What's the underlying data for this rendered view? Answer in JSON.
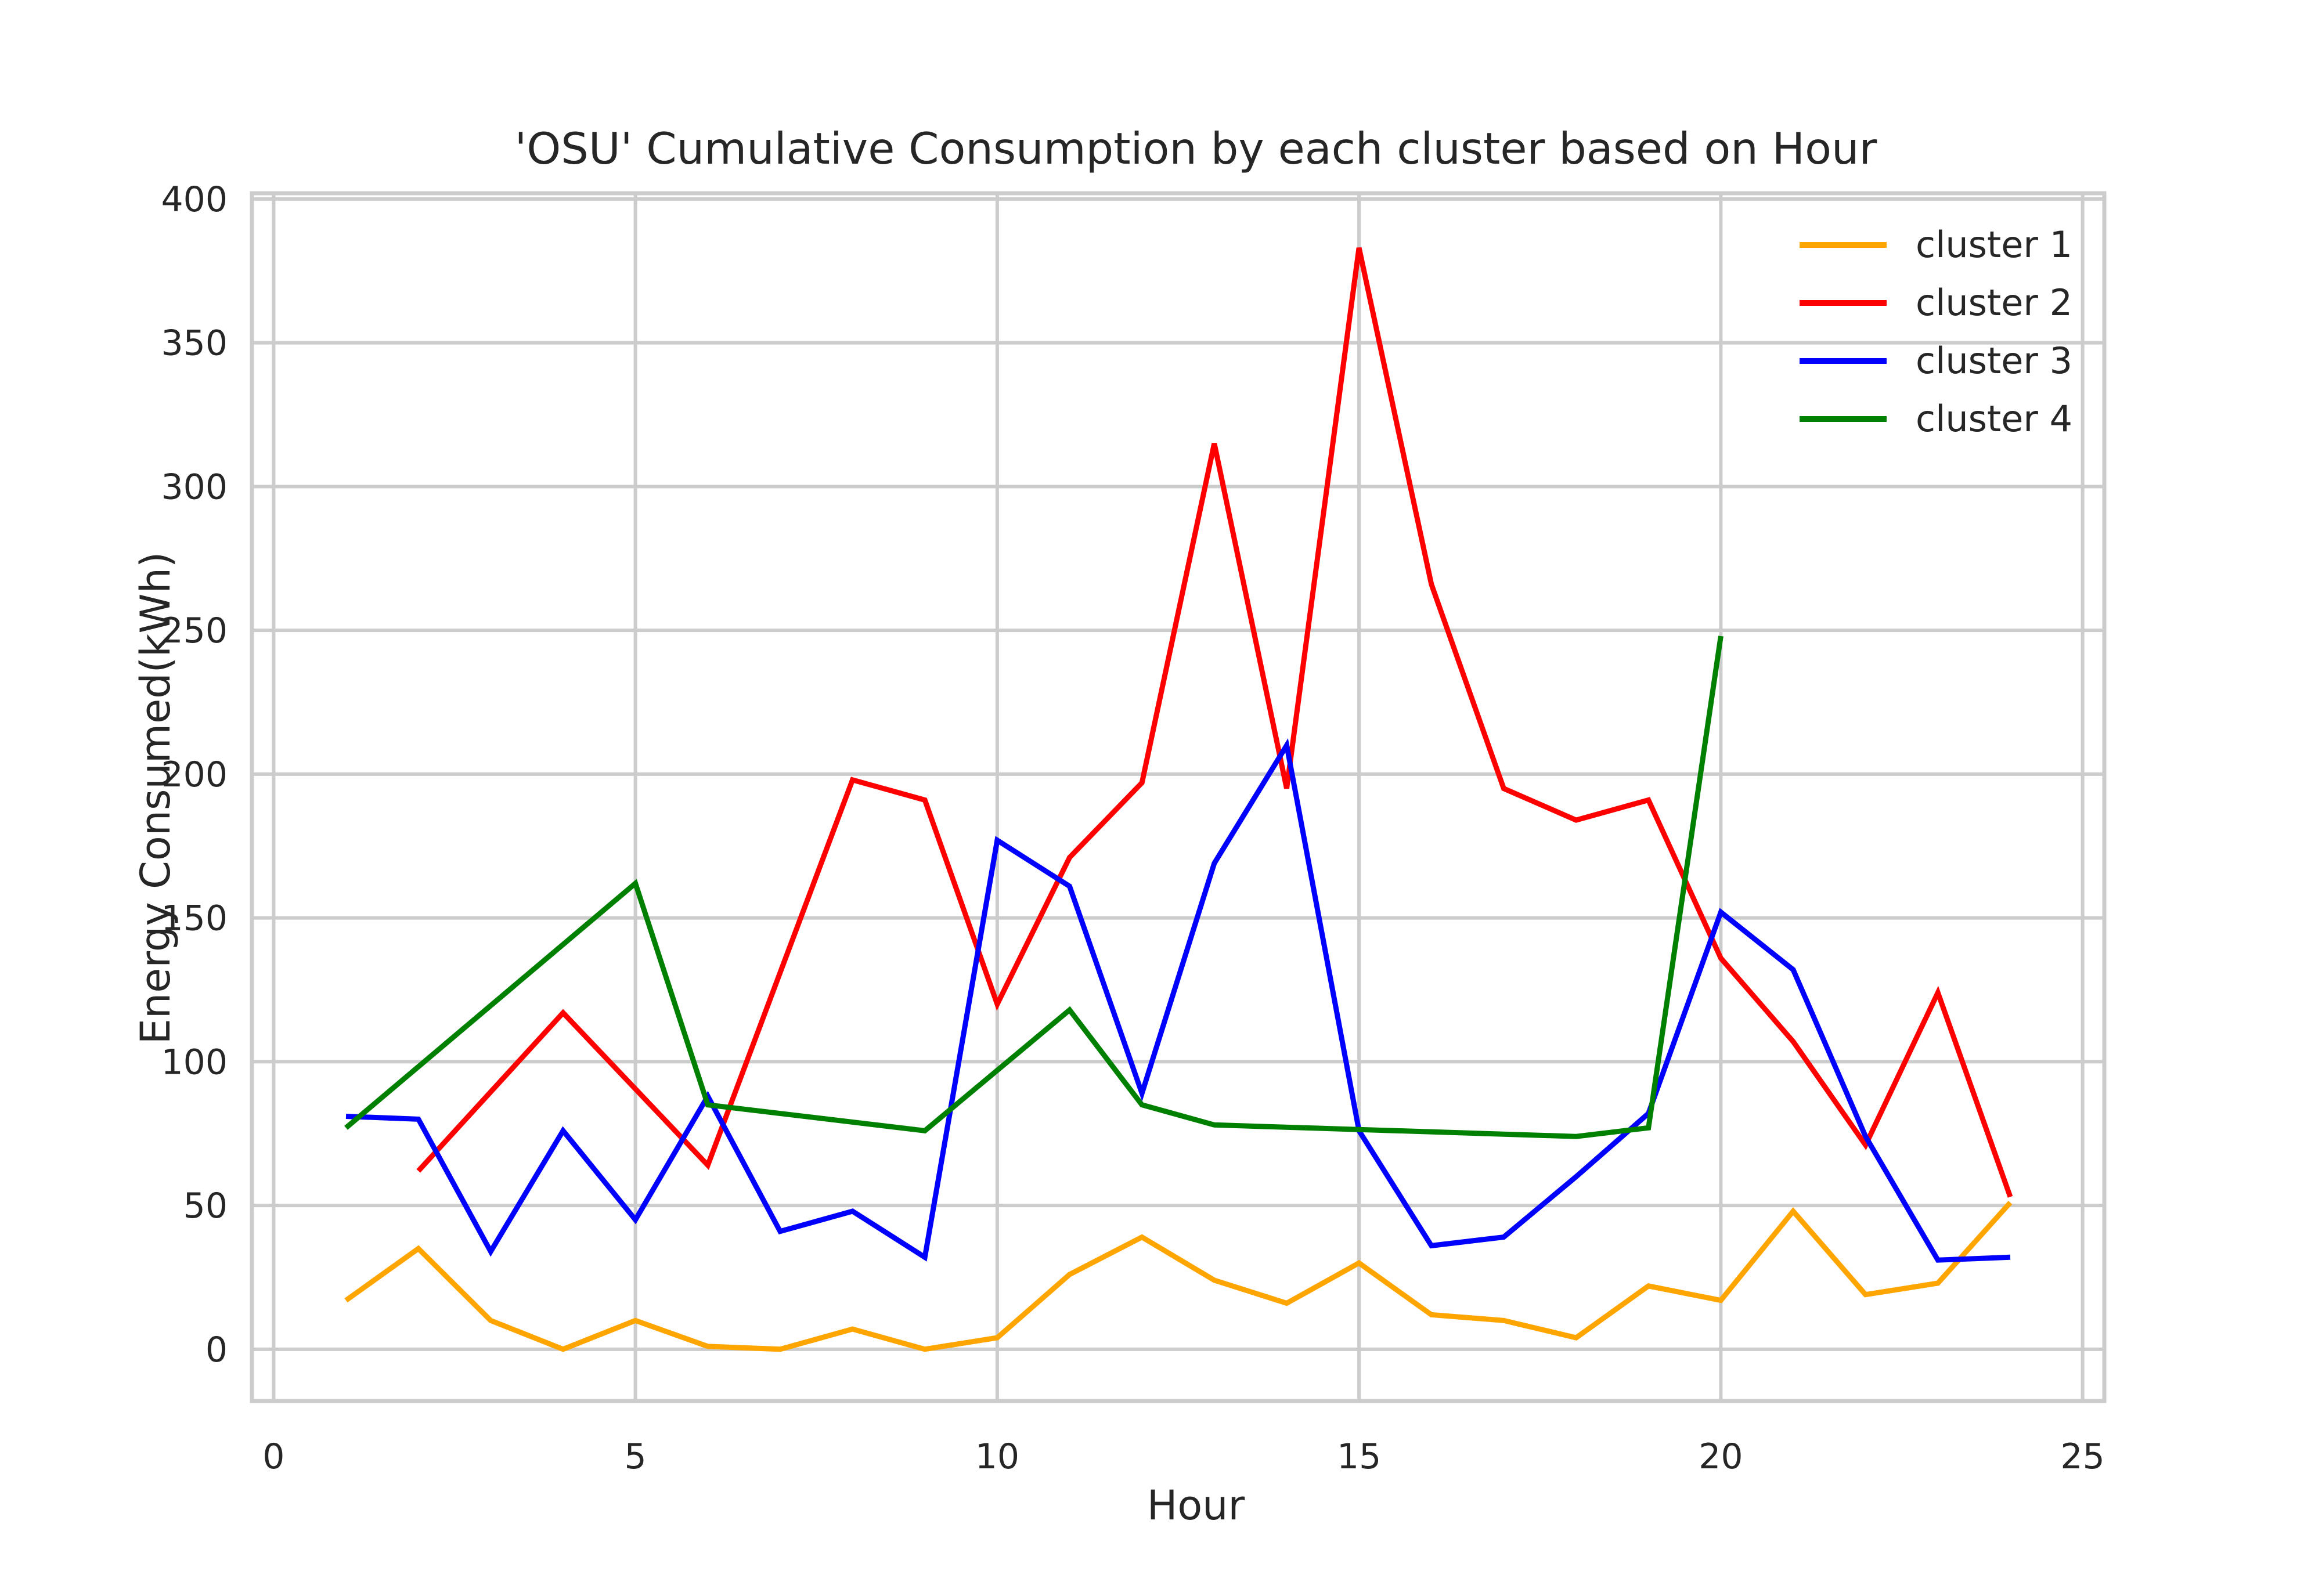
{
  "chart_data": {
    "type": "line",
    "title": "'OSU' Cumulative Consumption by each cluster based on Hour",
    "xlabel": "Hour",
    "ylabel": "Energy Consumed(kWh)",
    "xlim": [
      -0.3,
      25.3
    ],
    "ylim": [
      -18,
      402
    ],
    "xticks": [
      0,
      5,
      10,
      15,
      20,
      25
    ],
    "yticks": [
      0,
      50,
      100,
      150,
      200,
      250,
      300,
      350,
      400
    ],
    "grid": true,
    "legend_position": "top-right",
    "series": [
      {
        "name": "cluster 1",
        "color": "#ffa500",
        "x": [
          1,
          2,
          3,
          4,
          5,
          6,
          7,
          8,
          9,
          10,
          11,
          12,
          13,
          14,
          15,
          16,
          17,
          18,
          19,
          20,
          21,
          22,
          23,
          24
        ],
        "y": [
          17,
          35,
          10,
          0,
          10,
          1,
          0,
          7,
          0,
          4,
          26,
          39,
          24,
          16,
          30,
          12,
          10,
          4,
          22,
          17,
          48,
          19,
          23,
          51
        ]
      },
      {
        "name": "cluster 2",
        "color": "#ff0000",
        "x": [
          2,
          4,
          6,
          8,
          9,
          10,
          11,
          12,
          13,
          14,
          15,
          16,
          17,
          18,
          19,
          20,
          21,
          22,
          23,
          24
        ],
        "y": [
          62,
          117,
          64,
          198,
          191,
          120,
          171,
          197,
          315,
          195,
          383,
          266,
          195,
          184,
          191,
          136,
          107,
          71,
          124,
          53
        ]
      },
      {
        "name": "cluster 3",
        "color": "#0000ff",
        "x": [
          1,
          2,
          3,
          4,
          5,
          6,
          7,
          8,
          9,
          10,
          11,
          12,
          13,
          14,
          15,
          16,
          17,
          18,
          19,
          20,
          21,
          22,
          23,
          24
        ],
        "y": [
          81,
          80,
          34,
          76,
          45,
          88,
          41,
          48,
          32,
          177,
          161,
          89,
          169,
          210,
          76,
          36,
          39,
          60,
          82,
          152,
          132,
          74,
          31,
          32
        ]
      },
      {
        "name": "cluster 4",
        "color": "#008000",
        "x": [
          1,
          5,
          6,
          9,
          11,
          12,
          13,
          18,
          19,
          20
        ],
        "y": [
          77,
          162,
          85,
          76,
          118,
          85,
          78,
          74,
          77,
          248
        ]
      }
    ]
  }
}
